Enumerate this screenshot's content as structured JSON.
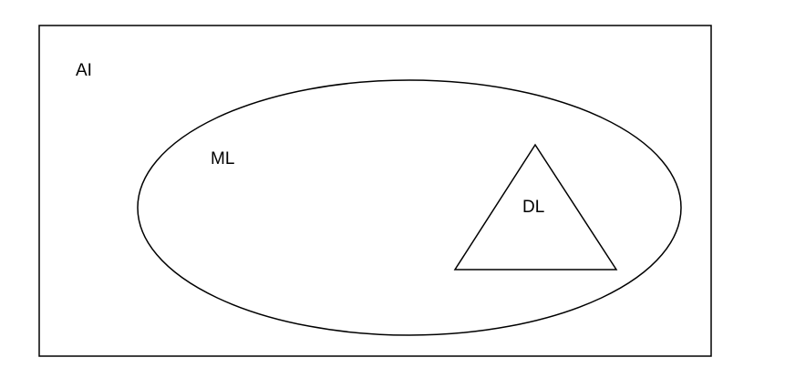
{
  "diagram": {
    "outer_set": {
      "label": "AI"
    },
    "middle_set": {
      "label": "ML"
    },
    "inner_set": {
      "label": "DL"
    }
  },
  "colors": {
    "stroke": "#000000",
    "background": "#ffffff"
  }
}
